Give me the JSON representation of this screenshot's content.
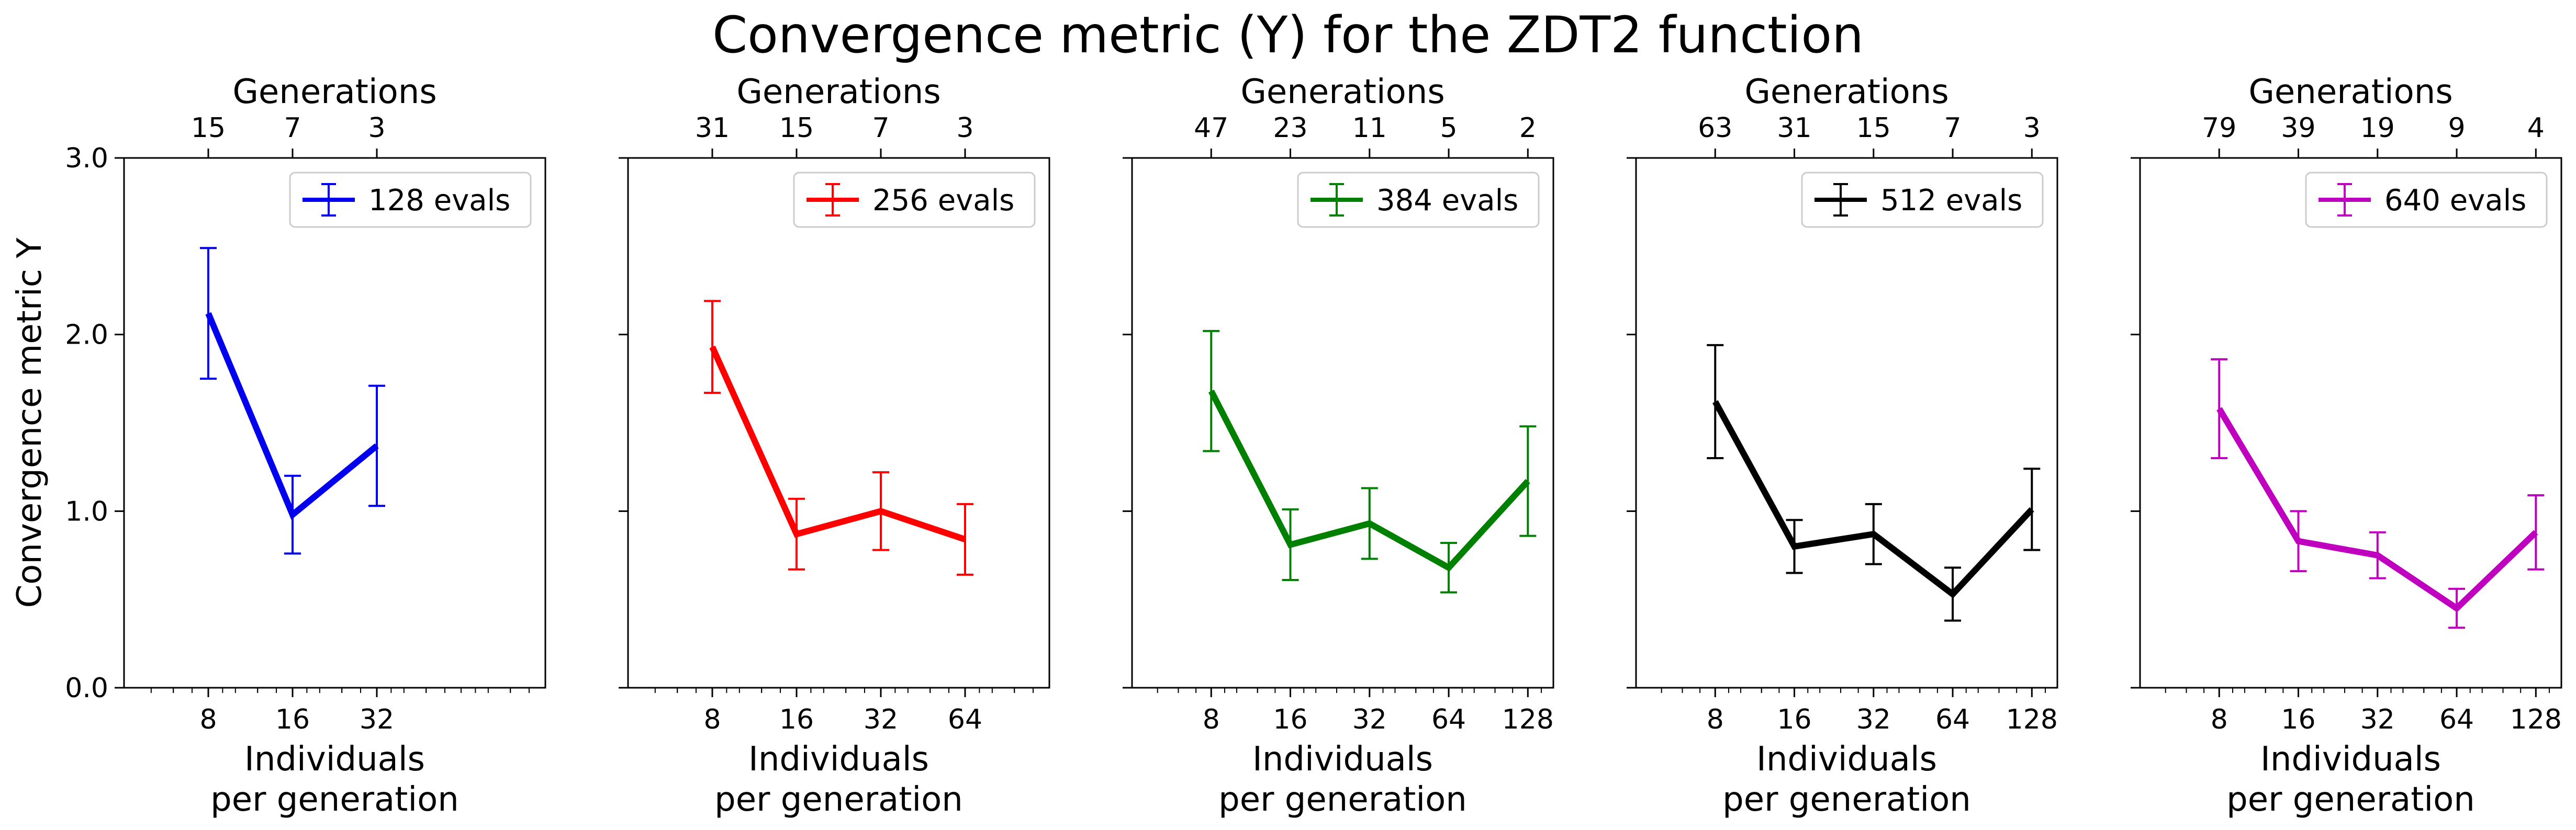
{
  "figure": {
    "title": "Convergence metric (Y) for the ZDT2 function"
  },
  "chart_data": [
    {
      "type": "line",
      "ylabel": "Convergence metric Y",
      "xlabel_line1": "Individuals",
      "xlabel_line2": "per generation",
      "top_xlabel": "Generations",
      "xscale": "log2",
      "xlim": [
        4,
        128
      ],
      "ylim": [
        0,
        3
      ],
      "yticks": [
        "0.0",
        "1.0",
        "2.0",
        "3.0"
      ],
      "x": [
        8,
        16,
        32
      ],
      "xtick_labels": [
        "8",
        "16",
        "32"
      ],
      "generations": [
        "15",
        "7",
        "3"
      ],
      "series": [
        {
          "name": "128 evals",
          "color": "#0000ee",
          "y": [
            2.12,
            0.98,
            1.37
          ],
          "err": [
            0.37,
            0.22,
            0.34
          ]
        }
      ],
      "legend": "top-right",
      "grid": false
    },
    {
      "type": "line",
      "xlabel_line1": "Individuals",
      "xlabel_line2": "per generation",
      "top_xlabel": "Generations",
      "xscale": "log2",
      "xlim": [
        4,
        128
      ],
      "ylim": [
        0,
        3
      ],
      "x": [
        8,
        16,
        32,
        64
      ],
      "xtick_labels": [
        "8",
        "16",
        "32",
        "64"
      ],
      "generations": [
        "31",
        "15",
        "7",
        "3"
      ],
      "series": [
        {
          "name": "256 evals",
          "color": "#ff0000",
          "y": [
            1.93,
            0.87,
            1.0,
            0.84
          ],
          "err": [
            0.26,
            0.2,
            0.22,
            0.2
          ]
        }
      ],
      "legend": "top-right",
      "grid": false
    },
    {
      "type": "line",
      "xlabel_line1": "Individuals",
      "xlabel_line2": "per generation",
      "top_xlabel": "Generations",
      "xscale": "log2",
      "xlim": [
        4,
        160
      ],
      "ylim": [
        0,
        3
      ],
      "x": [
        8,
        16,
        32,
        64,
        128
      ],
      "xtick_labels": [
        "8",
        "16",
        "32",
        "64",
        "128"
      ],
      "generations": [
        "47",
        "23",
        "11",
        "5",
        "2"
      ],
      "series": [
        {
          "name": "384 evals",
          "color": "#008000",
          "y": [
            1.68,
            0.81,
            0.93,
            0.68,
            1.17
          ],
          "err": [
            0.34,
            0.2,
            0.2,
            0.14,
            0.31
          ]
        }
      ],
      "legend": "top-right",
      "grid": false
    },
    {
      "type": "line",
      "xlabel_line1": "Individuals",
      "xlabel_line2": "per generation",
      "top_xlabel": "Generations",
      "xscale": "log2",
      "xlim": [
        4,
        160
      ],
      "ylim": [
        0,
        3
      ],
      "x": [
        8,
        16,
        32,
        64,
        128
      ],
      "xtick_labels": [
        "8",
        "16",
        "32",
        "64",
        "128"
      ],
      "generations": [
        "63",
        "31",
        "15",
        "7",
        "3"
      ],
      "series": [
        {
          "name": "512 evals",
          "color": "#000000",
          "y": [
            1.62,
            0.8,
            0.87,
            0.53,
            1.01
          ],
          "err": [
            0.32,
            0.15,
            0.17,
            0.15,
            0.23
          ]
        }
      ],
      "legend": "top-right",
      "grid": false
    },
    {
      "type": "line",
      "xlabel_line1": "Individuals",
      "xlabel_line2": "per generation",
      "top_xlabel": "Generations",
      "xscale": "log2",
      "xlim": [
        4,
        160
      ],
      "ylim": [
        0,
        3
      ],
      "x": [
        8,
        16,
        32,
        64,
        128
      ],
      "xtick_labels": [
        "8",
        "16",
        "32",
        "64",
        "128"
      ],
      "generations": [
        "79",
        "39",
        "19",
        "9",
        "4"
      ],
      "series": [
        {
          "name": "640 evals",
          "color": "#bf00bf",
          "y": [
            1.58,
            0.83,
            0.75,
            0.45,
            0.88
          ],
          "err": [
            0.28,
            0.17,
            0.13,
            0.11,
            0.21
          ]
        }
      ],
      "legend": "top-right",
      "grid": false
    }
  ]
}
